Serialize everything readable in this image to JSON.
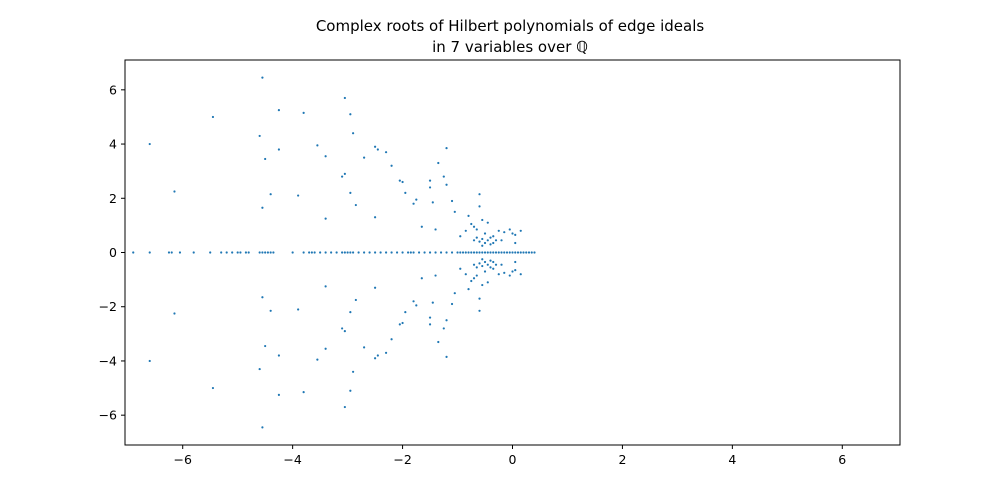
{
  "chart_data": {
    "type": "scatter",
    "title_line1": "Complex roots of Hilbert polynomials of edge ideals",
    "title_line2": "in 7 variables over ℚ",
    "xlabel": "",
    "ylabel": "",
    "xlim": [
      -7.05,
      7.05
    ],
    "ylim": [
      -7.1,
      7.1
    ],
    "xticks": [
      -6,
      -4,
      -2,
      0,
      2,
      4,
      6
    ],
    "yticks": [
      -6,
      -4,
      -2,
      0,
      2,
      4,
      6
    ],
    "xtick_labels": [
      "−6",
      "−4",
      "−2",
      "0",
      "2",
      "4",
      "6"
    ],
    "ytick_labels": [
      "−6",
      "−4",
      "−2",
      "0",
      "2",
      "4",
      "6"
    ],
    "grid": false,
    "marker_color": "#1f77b4",
    "real_roots": [
      -6.9,
      -6.6,
      -6.25,
      -6.2,
      -6.05,
      -5.8,
      -5.5,
      -5.3,
      -5.2,
      -5.1,
      -5.0,
      -4.95,
      -4.85,
      -4.8,
      -4.6,
      -4.55,
      -4.5,
      -4.45,
      -4.4,
      -4.35,
      -4.0,
      -3.8,
      -3.7,
      -3.65,
      -3.6,
      -3.5,
      -3.4,
      -3.3,
      -3.2,
      -3.1,
      -3.05,
      -3.0,
      -2.95,
      -2.9,
      -2.8,
      -2.7,
      -2.6,
      -2.5,
      -2.4,
      -2.3,
      -2.2,
      -2.1,
      -2.0,
      -1.9,
      -1.85,
      -1.8,
      -1.7,
      -1.6,
      -1.5,
      -1.4,
      -1.3,
      -1.2,
      -1.1,
      -1.0,
      -0.95,
      -0.9,
      -0.85,
      -0.8,
      -0.75,
      -0.7,
      -0.65,
      -0.6,
      -0.55,
      -0.5,
      -0.45,
      -0.4,
      -0.35,
      -0.3,
      -0.25,
      -0.2,
      -0.15,
      -0.1,
      -0.05,
      0.0,
      0.05,
      0.1,
      0.15,
      0.2,
      0.25,
      0.3,
      0.35,
      0.4
    ],
    "complex_roots_upper": [
      [
        -6.6,
        4.0
      ],
      [
        -6.15,
        2.25
      ],
      [
        -5.45,
        5.0
      ],
      [
        -4.55,
        6.45
      ],
      [
        -4.6,
        4.3
      ],
      [
        -4.5,
        3.45
      ],
      [
        -4.4,
        2.15
      ],
      [
        -4.55,
        1.65
      ],
      [
        -4.25,
        5.25
      ],
      [
        -4.25,
        3.8
      ],
      [
        -3.9,
        2.1
      ],
      [
        -3.8,
        5.15
      ],
      [
        -3.55,
        3.95
      ],
      [
        -3.4,
        3.55
      ],
      [
        -3.4,
        1.25
      ],
      [
        -3.05,
        5.7
      ],
      [
        -2.95,
        5.1
      ],
      [
        -2.9,
        4.4
      ],
      [
        -3.1,
        2.8
      ],
      [
        -3.05,
        2.9
      ],
      [
        -2.95,
        2.2
      ],
      [
        -2.85,
        1.75
      ],
      [
        -2.7,
        3.5
      ],
      [
        -2.5,
        3.9
      ],
      [
        -2.45,
        3.8
      ],
      [
        -2.3,
        3.7
      ],
      [
        -2.5,
        1.3
      ],
      [
        -2.2,
        3.2
      ],
      [
        -2.05,
        2.65
      ],
      [
        -2.0,
        2.6
      ],
      [
        -1.95,
        2.2
      ],
      [
        -1.8,
        1.8
      ],
      [
        -1.75,
        1.95
      ],
      [
        -1.65,
        0.95
      ],
      [
        -1.5,
        2.4
      ],
      [
        -1.45,
        1.85
      ],
      [
        -1.5,
        2.65
      ],
      [
        -1.35,
        3.3
      ],
      [
        -1.2,
        3.85
      ],
      [
        -1.25,
        2.8
      ],
      [
        -1.2,
        2.5
      ],
      [
        -1.1,
        1.9
      ],
      [
        -1.05,
        1.5
      ],
      [
        -1.4,
        0.85
      ],
      [
        -0.95,
        0.6
      ],
      [
        -0.85,
        0.8
      ],
      [
        -0.8,
        1.35
      ],
      [
        -0.75,
        1.05
      ],
      [
        -0.7,
        0.95
      ],
      [
        -0.7,
        0.45
      ],
      [
        -0.65,
        0.85
      ],
      [
        -0.6,
        2.15
      ],
      [
        -0.6,
        1.7
      ],
      [
        -0.55,
        1.2
      ],
      [
        -0.55,
        0.5
      ],
      [
        -0.5,
        0.7
      ],
      [
        -0.5,
        0.35
      ],
      [
        -0.45,
        1.1
      ],
      [
        -0.45,
        0.45
      ],
      [
        -0.4,
        0.3
      ],
      [
        -0.35,
        0.6
      ],
      [
        -0.3,
        0.45
      ],
      [
        -0.25,
        0.8
      ],
      [
        -0.2,
        0.45
      ],
      [
        -0.15,
        0.75
      ],
      [
        -0.05,
        0.85
      ],
      [
        0.0,
        0.7
      ],
      [
        0.05,
        0.65
      ],
      [
        0.15,
        0.8
      ],
      [
        0.05,
        0.35
      ],
      [
        -0.55,
        0.25
      ],
      [
        -0.6,
        0.4
      ],
      [
        -0.65,
        0.55
      ],
      [
        -0.4,
        0.55
      ],
      [
        -0.35,
        0.35
      ]
    ]
  }
}
